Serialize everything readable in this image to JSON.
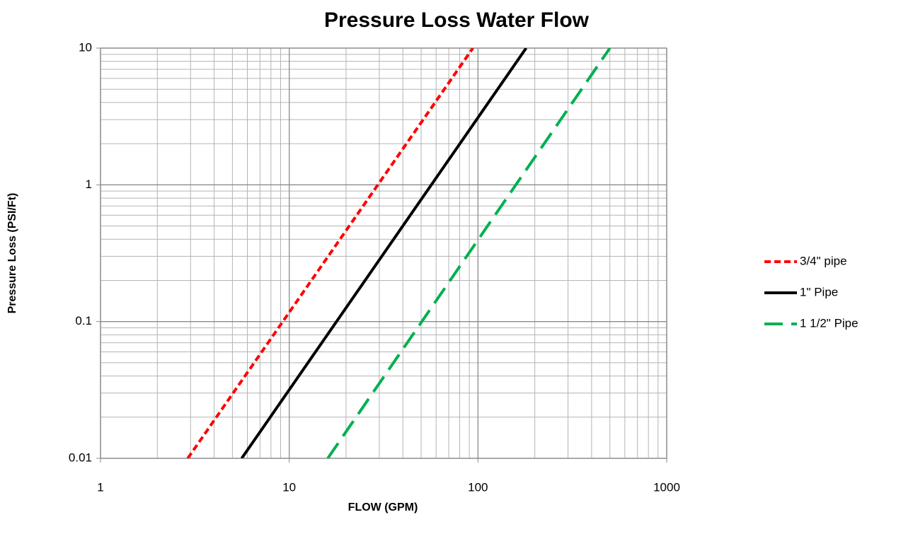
{
  "chart_data": {
    "type": "line",
    "title": "Pressure Loss Water Flow",
    "x_label": "FLOW (GPM)",
    "y_label": "Pressure Loss (PSI/Ft)",
    "x_log": true,
    "y_log": true,
    "grid": true,
    "minor_grid": true,
    "legend": "right",
    "xlim": [
      1,
      1000
    ],
    "xticks": [
      1,
      10,
      100,
      1000
    ],
    "ylim": [
      0.01,
      10
    ],
    "yticks": [
      0.01,
      0.1,
      1,
      10
    ],
    "series": [
      {
        "name": "3/4\" pipe",
        "color": "#ff0000",
        "dash": "short",
        "x": [
          2.9,
          94
        ],
        "values": [
          0.01,
          10
        ]
      },
      {
        "name": "1\" Pipe",
        "color": "#000000",
        "dash": "solid",
        "x": [
          5.6,
          180
        ],
        "values": [
          0.01,
          10
        ]
      },
      {
        "name": "1 1/2\" Pipe",
        "color": "#00b050",
        "dash": "long",
        "x": [
          16,
          500
        ],
        "values": [
          0.01,
          10
        ]
      }
    ]
  }
}
